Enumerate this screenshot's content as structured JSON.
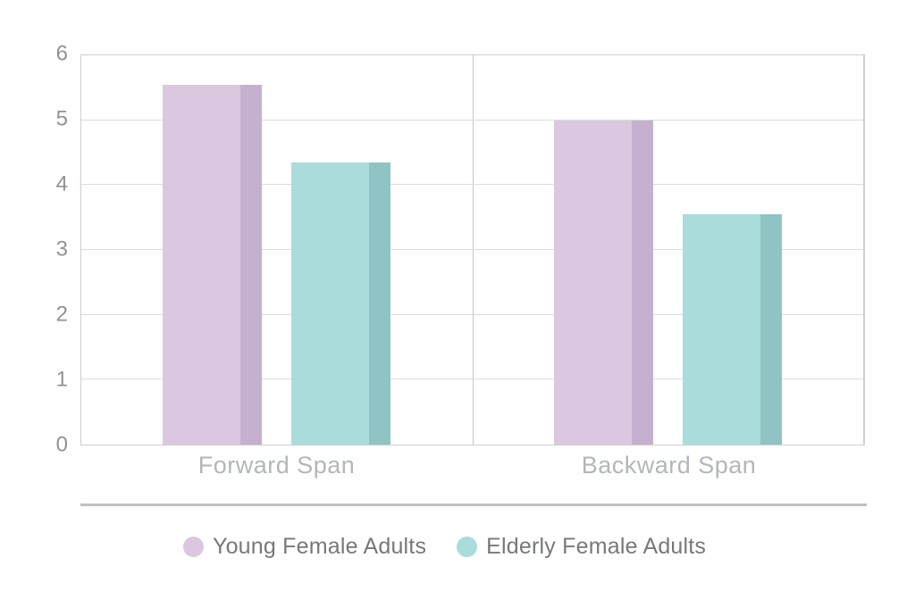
{
  "page": {
    "background": "#ffffff"
  },
  "chart_data": {
    "type": "bar",
    "categories": [
      "Forward Span",
      "Backward Span"
    ],
    "series": [
      {
        "name": "Young Female Adults",
        "values": [
          5.55,
          5.0
        ],
        "color": "#dcc7e1",
        "edge_color": "#c6b0d0"
      },
      {
        "name": "Elderly Female Adults",
        "values": [
          4.35,
          3.55
        ],
        "color": "#a9dcdb",
        "edge_color": "#90c3c3"
      }
    ],
    "title": "",
    "xlabel": "",
    "ylabel": "",
    "ylim": [
      0,
      6
    ],
    "yticks": [
      0,
      1,
      2,
      3,
      4,
      5,
      6
    ],
    "grid": "horizontal",
    "legend_position": "bottom"
  },
  "style_colors": {
    "grid": "#dcdcdd",
    "plot_border": "#cfcfd0",
    "panel_divider": "#c6c7c8",
    "y_tick_label": "#8f9296",
    "category_label": "#b3b6ba",
    "legend_text": "#76787d",
    "separator": "#c0c1c2"
  }
}
